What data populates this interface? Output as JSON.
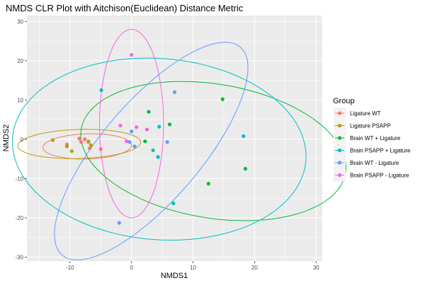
{
  "chart_data": {
    "type": "scatter",
    "title": "NMDS CLR Plot with Aitchison(Euclidean) Distance Metric",
    "xlabel": "NMDS1",
    "ylabel": "NMDS2",
    "xlim": [
      -17,
      31
    ],
    "ylim": [
      -31,
      31.5
    ],
    "x_ticks": [
      -10,
      0,
      10,
      20,
      30
    ],
    "y_ticks": [
      -30,
      -20,
      -10,
      0,
      10,
      20,
      30
    ],
    "grid": true,
    "legend": {
      "title": "Group",
      "position": "right"
    },
    "series": [
      {
        "name": "Ligature WT",
        "color": "#F8766D",
        "points": [
          [
            -8.5,
            0.2
          ],
          [
            -7.6,
            0.0
          ],
          [
            -8.2,
            -0.7
          ],
          [
            -10.5,
            -1.3
          ],
          [
            -7.0,
            -0.7
          ],
          [
            -6.8,
            -2.3
          ],
          [
            -5.0,
            -2.5
          ]
        ],
        "ellipse": {
          "center": [
            -7.2,
            -1.8
          ],
          "rx": 7.2,
          "ry": 3.2,
          "angle_deg": 3
        }
      },
      {
        "name": "Ligature PSAPP",
        "color": "#B79F00",
        "points": [
          [
            -12.8,
            -0.2
          ],
          [
            -10.5,
            -1.8
          ],
          [
            -9.7,
            -3.0
          ],
          [
            -7.0,
            -0.5
          ],
          [
            -6.6,
            -1.5
          ]
        ],
        "ellipse": {
          "center": [
            -8.5,
            -1.2
          ],
          "rx": 10.0,
          "ry": 3.7,
          "angle_deg": 3
        }
      },
      {
        "name": "Brain WT + Ligature",
        "color": "#00BA38",
        "points": [
          [
            2.8,
            7.0
          ],
          [
            6.2,
            3.8
          ],
          [
            2.2,
            -0.5
          ],
          [
            14.8,
            10.2
          ],
          [
            18.5,
            -7.5
          ],
          [
            12.5,
            -11.3
          ]
        ],
        "ellipse": {
          "center": [
            13.3,
            -3.0
          ],
          "rx": 22.5,
          "ry": 16.5,
          "angle_deg": -25
        }
      },
      {
        "name": "Brain PSAPP + Ligature",
        "color": "#00BFC4",
        "points": [
          [
            -4.9,
            12.5
          ],
          [
            4.5,
            3.2
          ],
          [
            3.5,
            -2.8
          ],
          [
            4.3,
            -4.5
          ],
          [
            6.8,
            -16.3
          ],
          [
            18.2,
            0.8
          ]
        ],
        "ellipse": {
          "center": [
            4.5,
            -2.5
          ],
          "rx": 22.5,
          "ry": 24.5,
          "angle_deg": 55
        }
      },
      {
        "name": "Brain WT - Ligature",
        "color": "#619CFF",
        "points": [
          [
            7.0,
            12.0
          ],
          [
            0.0,
            2.0
          ],
          [
            -0.3,
            -0.7
          ],
          [
            0.5,
            -1.8
          ],
          [
            5.8,
            -0.7
          ],
          [
            -2.0,
            -21.3
          ]
        ],
        "ellipse": {
          "center": [
            3.2,
            -3.0
          ],
          "rx": 30.5,
          "ry": 9.2,
          "angle_deg": 64
        }
      },
      {
        "name": "Brain PSAPP - Ligature",
        "color": "#F564E3",
        "points": [
          [
            0.0,
            21.5
          ],
          [
            -1.8,
            3.5
          ],
          [
            0.8,
            3.1
          ],
          [
            2.5,
            2.5
          ],
          [
            -0.8,
            -0.5
          ]
        ],
        "ellipse": {
          "center": [
            0.0,
            4.0
          ],
          "rx": 5.2,
          "ry": 24.0,
          "angle_deg": 0
        }
      }
    ]
  }
}
